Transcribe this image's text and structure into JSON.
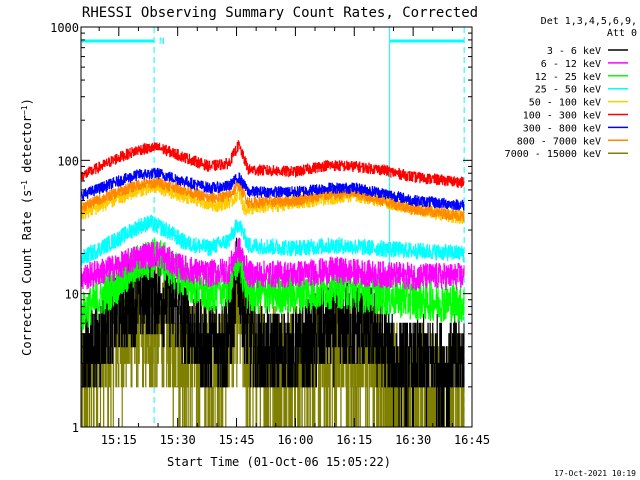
{
  "chart_data": {
    "type": "line",
    "title": "RHESSI Observing Summary Count Rates, Corrected",
    "xlabel": "Start Time (01-Oct-06 15:05:22)",
    "ylabel": "Corrected Count Rate (s⁻¹ detector⁻¹)",
    "ylog": true,
    "ylim": [
      1,
      1000
    ],
    "xlim": [
      "15:05:22",
      "16:45:00"
    ],
    "yticks": [
      {
        "v": 1,
        "label": "1"
      },
      {
        "v": 10,
        "label": "10"
      },
      {
        "v": 100,
        "label": "100"
      },
      {
        "v": 1000,
        "label": "1000"
      }
    ],
    "xticks": [
      {
        "t": "15:15",
        "label": "15:15"
      },
      {
        "t": "15:30",
        "label": "15:30"
      },
      {
        "t": "15:45",
        "label": "15:45"
      },
      {
        "t": "16:00",
        "label": "16:00"
      },
      {
        "t": "16:15",
        "label": "16:15"
      },
      {
        "t": "16:30",
        "label": "16:30"
      },
      {
        "t": "16:45",
        "label": "16:45"
      }
    ],
    "legend_header": [
      "Det 1,3,4,5,6,9,",
      "Att 0"
    ],
    "legend_position": "right",
    "night_intervals": [
      [
        "15:05:22",
        "15:24:00"
      ],
      [
        "16:24:00",
        "16:43:00"
      ]
    ],
    "night_marker": {
      "at": "15:24:00",
      "label": "N"
    },
    "series": [
      {
        "name": "3 - 6 keV",
        "color": "#000000",
        "noise": 0.35,
        "points": [
          [
            "15:05",
            "3.2"
          ],
          [
            "15:10",
            "4.5"
          ],
          [
            "15:15",
            "7.5"
          ],
          [
            "15:20",
            "9.5"
          ],
          [
            "15:24",
            "10"
          ],
          [
            "15:28",
            "9"
          ],
          [
            "15:32",
            "6"
          ],
          [
            "15:37",
            "4"
          ],
          [
            "15:42",
            "4.5"
          ],
          [
            "15:44",
            "7"
          ],
          [
            "15:45:30",
            "16"
          ],
          [
            "15:47",
            "6"
          ],
          [
            "15:50",
            "3.5"
          ],
          [
            "16:00",
            "3.5"
          ],
          [
            "16:05",
            "4.5"
          ],
          [
            "16:08",
            "5.5"
          ],
          [
            "16:20",
            "5.5"
          ],
          [
            "16:22",
            "4.2"
          ],
          [
            "16:25",
            "3"
          ],
          [
            "16:43",
            "3"
          ]
        ]
      },
      {
        "name": "6 - 12 keV",
        "color": "#ff00ff",
        "noise": 0.1,
        "points": [
          [
            "15:05",
            "13"
          ],
          [
            "15:15",
            "16"
          ],
          [
            "15:20",
            "19"
          ],
          [
            "15:25",
            "20"
          ],
          [
            "15:30",
            "16"
          ],
          [
            "15:37",
            "14"
          ],
          [
            "15:43",
            "15"
          ],
          [
            "15:45:30",
            "22"
          ],
          [
            "15:48",
            "14"
          ],
          [
            "16:00",
            "14"
          ],
          [
            "16:10",
            "15"
          ],
          [
            "16:20",
            "14"
          ],
          [
            "16:30",
            "13.5"
          ],
          [
            "16:43",
            "13.5"
          ]
        ]
      },
      {
        "name": "12 - 25 keV",
        "color": "#00ff00",
        "noise": 0.15,
        "points": [
          [
            "15:05",
            "7"
          ],
          [
            "15:15",
            "12"
          ],
          [
            "15:20",
            "17"
          ],
          [
            "15:25",
            "19"
          ],
          [
            "15:30",
            "14"
          ],
          [
            "15:37",
            "10"
          ],
          [
            "15:43",
            "11"
          ],
          [
            "15:45:30",
            "19"
          ],
          [
            "15:48",
            "10"
          ],
          [
            "16:00",
            "10"
          ],
          [
            "16:10",
            "11"
          ],
          [
            "16:20",
            "10"
          ],
          [
            "16:30",
            "9"
          ],
          [
            "16:43",
            "8.5"
          ]
        ]
      },
      {
        "name": "25 - 50 keV",
        "color": "#00ffff",
        "noise": 0.06,
        "points": [
          [
            "15:05",
            "18"
          ],
          [
            "15:15",
            "26"
          ],
          [
            "15:20",
            "32"
          ],
          [
            "15:23",
            "34"
          ],
          [
            "15:27",
            "30"
          ],
          [
            "15:32",
            "24"
          ],
          [
            "15:38",
            "22"
          ],
          [
            "15:43",
            "25"
          ],
          [
            "15:45:30",
            "34"
          ],
          [
            "15:48",
            "23"
          ],
          [
            "16:00",
            "22"
          ],
          [
            "16:10",
            "23"
          ],
          [
            "16:20",
            "22"
          ],
          [
            "16:30",
            "21"
          ],
          [
            "16:43",
            "20"
          ]
        ]
      },
      {
        "name": "50 - 100 keV",
        "color": "#ffcc00",
        "noise": 0.05,
        "points": [
          [
            "15:05",
            "39"
          ],
          [
            "15:15",
            "52"
          ],
          [
            "15:20",
            "60"
          ],
          [
            "15:25",
            "63"
          ],
          [
            "15:30",
            "55"
          ],
          [
            "15:40",
            "46"
          ],
          [
            "15:44",
            "50"
          ],
          [
            "15:45:30",
            "58"
          ],
          [
            "15:47",
            "43"
          ],
          [
            "15:52",
            "45"
          ],
          [
            "16:00",
            "48"
          ],
          [
            "16:08",
            "52"
          ],
          [
            "16:15",
            "55"
          ],
          [
            "16:22",
            "50"
          ],
          [
            "16:32",
            "42"
          ],
          [
            "16:43",
            "37"
          ]
        ]
      },
      {
        "name": "100 - 300 keV",
        "color": "#ff0000",
        "noise": 0.04,
        "points": [
          [
            "15:05",
            "75"
          ],
          [
            "15:15",
            "105"
          ],
          [
            "15:20",
            "120"
          ],
          [
            "15:25",
            "125"
          ],
          [
            "15:30",
            "110"
          ],
          [
            "15:38",
            "90"
          ],
          [
            "15:43",
            "95"
          ],
          [
            "15:45:30",
            "130"
          ],
          [
            "15:48",
            "85"
          ],
          [
            "16:00",
            "82"
          ],
          [
            "16:08",
            "92"
          ],
          [
            "16:15",
            "90"
          ],
          [
            "16:22",
            "85"
          ],
          [
            "16:30",
            "75"
          ],
          [
            "16:43",
            "68"
          ]
        ]
      },
      {
        "name": "300 - 800 keV",
        "color": "#0000ff",
        "noise": 0.04,
        "points": [
          [
            "15:05",
            "54"
          ],
          [
            "15:15",
            "70"
          ],
          [
            "15:20",
            "78"
          ],
          [
            "15:25",
            "80"
          ],
          [
            "15:30",
            "72"
          ],
          [
            "15:38",
            "62"
          ],
          [
            "15:43",
            "64"
          ],
          [
            "15:45:30",
            "75"
          ],
          [
            "15:48",
            "58"
          ],
          [
            "16:00",
            "58"
          ],
          [
            "16:08",
            "62"
          ],
          [
            "16:15",
            "62"
          ],
          [
            "16:22",
            "57"
          ],
          [
            "16:30",
            "50"
          ],
          [
            "16:43",
            "46"
          ]
        ]
      },
      {
        "name": "800 - 7000 keV",
        "color": "#ff8800",
        "noise": 0.04,
        "points": [
          [
            "15:05",
            "44"
          ],
          [
            "15:15",
            "58"
          ],
          [
            "15:20",
            "66"
          ],
          [
            "15:25",
            "68"
          ],
          [
            "15:30",
            "62"
          ],
          [
            "15:38",
            "52"
          ],
          [
            "15:43",
            "54"
          ],
          [
            "15:45:30",
            "66"
          ],
          [
            "15:48",
            "48"
          ],
          [
            "16:00",
            "50"
          ],
          [
            "16:08",
            "55"
          ],
          [
            "16:15",
            "57"
          ],
          [
            "16:22",
            "50"
          ],
          [
            "16:30",
            "43"
          ],
          [
            "16:43",
            "38"
          ]
        ]
      },
      {
        "name": "7000 - 15000 keV",
        "color": "#808000",
        "noise": 0.5,
        "points": [
          [
            "15:05",
            "2"
          ],
          [
            "15:10",
            "3"
          ],
          [
            "15:15",
            "4.5"
          ],
          [
            "15:20",
            "5.5"
          ],
          [
            "15:25",
            "5.5"
          ],
          [
            "15:30",
            "4"
          ],
          [
            "15:35",
            "3"
          ],
          [
            "15:42",
            "3"
          ],
          [
            "15:45:30",
            "8"
          ],
          [
            "15:48",
            "3"
          ],
          [
            "16:00",
            "2.8"
          ],
          [
            "16:10",
            "3"
          ],
          [
            "16:20",
            "3"
          ],
          [
            "16:25",
            "2"
          ],
          [
            "16:43",
            "1.6"
          ]
        ]
      }
    ]
  },
  "timestamp": "17-Oct-2021 10:19"
}
